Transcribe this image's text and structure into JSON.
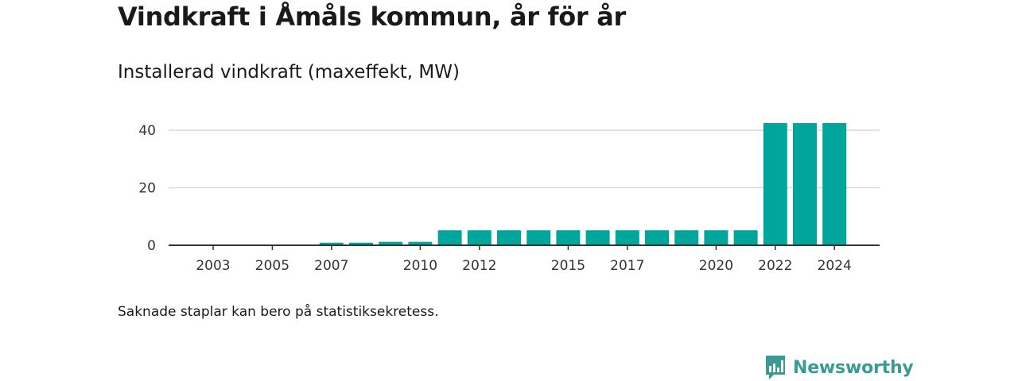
{
  "header": {
    "title": "Vindkraft i Åmåls kommun, år för år",
    "subtitle": "Installerad vindkraft (maxeffekt, MW)"
  },
  "footer": {
    "note": "Saknade staplar kan bero på statistiksekretess.",
    "brand": "Newsworthy",
    "brand_icon": "bar-chart-speech-bubble-icon"
  },
  "colors": {
    "bar": "#00a69c",
    "grid": "#d9d9d9",
    "axis": "#333333",
    "brand": "#3a9b94"
  },
  "chart_data": {
    "type": "bar",
    "title": "Installerad vindkraft (maxeffekt, MW)",
    "xlabel": "",
    "ylabel": "",
    "categories": [
      "2003",
      "2004",
      "2005",
      "2006",
      "2007",
      "2008",
      "2009",
      "2010",
      "2011",
      "2012",
      "2013",
      "2014",
      "2015",
      "2016",
      "2017",
      "2018",
      "2019",
      "2020",
      "2021",
      "2022",
      "2023",
      "2024"
    ],
    "values": [
      0,
      0,
      0,
      0,
      0.9,
      0.9,
      1.2,
      1.2,
      5.2,
      5.2,
      5.2,
      5.2,
      5.2,
      5.2,
      5.2,
      5.2,
      5.2,
      5.2,
      5.2,
      42.5,
      42.5,
      42.5
    ],
    "x_tick_labels": [
      "2003",
      "2005",
      "2007",
      "2010",
      "2012",
      "2015",
      "2017",
      "2020",
      "2022",
      "2024"
    ],
    "y_ticks": [
      0,
      20,
      40
    ],
    "ylim": [
      0,
      45
    ],
    "grid": true,
    "legend": "none"
  }
}
